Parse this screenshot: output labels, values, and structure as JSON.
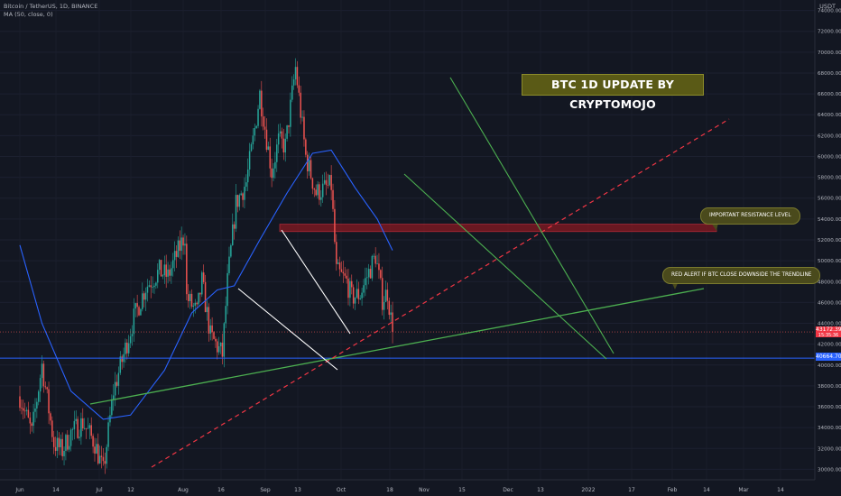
{
  "header": {
    "symbol_line": "Bitcoin / TetherUS, 1D, BINANCE",
    "indicator_line": "MA (50, close, 0)",
    "currency": "USDT"
  },
  "annotations": {
    "title": "BTC 1D UPDATE BY CRYPTOMOJO",
    "resistance_note": "IMPORTANT RESISTANCE LEVEL",
    "alert_note": "RED ALERT IF BTC CLOSE DOWNSIDE THE TRENDLINE"
  },
  "price_tags": {
    "current_price": "43172.39",
    "current_countdown": "15:35:36",
    "support_level": "40664.70"
  },
  "colors": {
    "background": "#131722",
    "up_candle": "#26a69a",
    "down_candle": "#ef5350",
    "ma_line": "#2962ff",
    "trendline": "#4caf50",
    "dashed_line": "#f23645",
    "resistance_zone": "#801922"
  },
  "chart_data": {
    "type": "candlestick",
    "title": "BTC 1D UPDATE BY CRYPTOMOJO",
    "ylim": [
      29000,
      75000
    ],
    "y_ticks": [
      30000,
      32000,
      34000,
      36000,
      38000,
      40000,
      42000,
      44000,
      46000,
      48000,
      50000,
      52000,
      54000,
      56000,
      58000,
      60000,
      62000,
      64000,
      66000,
      68000,
      70000,
      72000,
      74000
    ],
    "x_ticks": [
      "Jun",
      "14",
      "Jul",
      "12",
      "Aug",
      "16",
      "Sep",
      "13",
      "Oct",
      "18",
      "Nov",
      "15",
      "Dec",
      "13",
      "2022",
      "17",
      "Feb",
      "14",
      "Mar",
      "14"
    ],
    "close_path": [
      {
        "x": "2021-06-01",
        "y": 37000
      },
      {
        "x": "2021-06-08",
        "y": 33500
      },
      {
        "x": "2021-06-14",
        "y": 40000
      },
      {
        "x": "2021-06-21",
        "y": 32500
      },
      {
        "x": "2021-06-26",
        "y": 31800
      },
      {
        "x": "2021-07-01",
        "y": 33500
      },
      {
        "x": "2021-07-08",
        "y": 34500
      },
      {
        "x": "2021-07-15",
        "y": 32500
      },
      {
        "x": "2021-07-20",
        "y": 29800
      },
      {
        "x": "2021-07-26",
        "y": 37500
      },
      {
        "x": "2021-08-01",
        "y": 41000
      },
      {
        "x": "2021-08-07",
        "y": 44500
      },
      {
        "x": "2021-08-14",
        "y": 47500
      },
      {
        "x": "2021-08-22",
        "y": 49000
      },
      {
        "x": "2021-08-27",
        "y": 48500
      },
      {
        "x": "2021-09-06",
        "y": 52500
      },
      {
        "x": "2021-09-07",
        "y": 46500
      },
      {
        "x": "2021-09-13",
        "y": 45000
      },
      {
        "x": "2021-09-16",
        "y": 48000
      },
      {
        "x": "2021-09-21",
        "y": 42800
      },
      {
        "x": "2021-09-28",
        "y": 41000
      },
      {
        "x": "2021-10-01",
        "y": 48000
      },
      {
        "x": "2021-10-06",
        "y": 55500
      },
      {
        "x": "2021-10-12",
        "y": 57500
      },
      {
        "x": "2021-10-16",
        "y": 61500
      },
      {
        "x": "2021-10-20",
        "y": 66000
      },
      {
        "x": "2021-10-27",
        "y": 58500
      },
      {
        "x": "2021-10-31",
        "y": 61500
      },
      {
        "x": "2021-11-04",
        "y": 61000
      },
      {
        "x": "2021-11-10",
        "y": 68500
      },
      {
        "x": "2021-11-16",
        "y": 60000
      },
      {
        "x": "2021-11-22",
        "y": 56500
      },
      {
        "x": "2021-11-28",
        "y": 57000
      },
      {
        "x": "2021-12-01",
        "y": 57200
      },
      {
        "x": "2021-12-04",
        "y": 49000
      },
      {
        "x": "2021-12-10",
        "y": 48000
      },
      {
        "x": "2021-12-13",
        "y": 46500
      },
      {
        "x": "2021-12-18",
        "y": 46800
      },
      {
        "x": "2021-12-22",
        "y": 48500
      },
      {
        "x": "2021-12-27",
        "y": 50500
      },
      {
        "x": "2021-12-31",
        "y": 46300
      },
      {
        "x": "2022-01-03",
        "y": 47000
      },
      {
        "x": "2022-01-06",
        "y": 43172.39
      }
    ],
    "series": [
      {
        "name": "MA (50, close, 0)",
        "points": [
          {
            "x": "2021-06-01",
            "y": 51500
          },
          {
            "x": "2021-06-14",
            "y": 44000
          },
          {
            "x": "2021-07-01",
            "y": 37500
          },
          {
            "x": "2021-07-20",
            "y": 34800
          },
          {
            "x": "2021-08-05",
            "y": 35200
          },
          {
            "x": "2021-08-25",
            "y": 39500
          },
          {
            "x": "2021-09-10",
            "y": 45000
          },
          {
            "x": "2021-09-25",
            "y": 47200
          },
          {
            "x": "2021-10-05",
            "y": 47600
          },
          {
            "x": "2021-10-20",
            "y": 52000
          },
          {
            "x": "2021-11-05",
            "y": 56500
          },
          {
            "x": "2021-11-20",
            "y": 60300
          },
          {
            "x": "2021-12-01",
            "y": 60600
          },
          {
            "x": "2021-12-15",
            "y": 57000
          },
          {
            "x": "2021-12-28",
            "y": 54000
          },
          {
            "x": "2022-01-06",
            "y": 51000
          }
        ]
      }
    ],
    "resistance_zone": {
      "low": 52800,
      "high": 53500
    },
    "support_level": 40664.7,
    "current_price": 43172.39
  }
}
